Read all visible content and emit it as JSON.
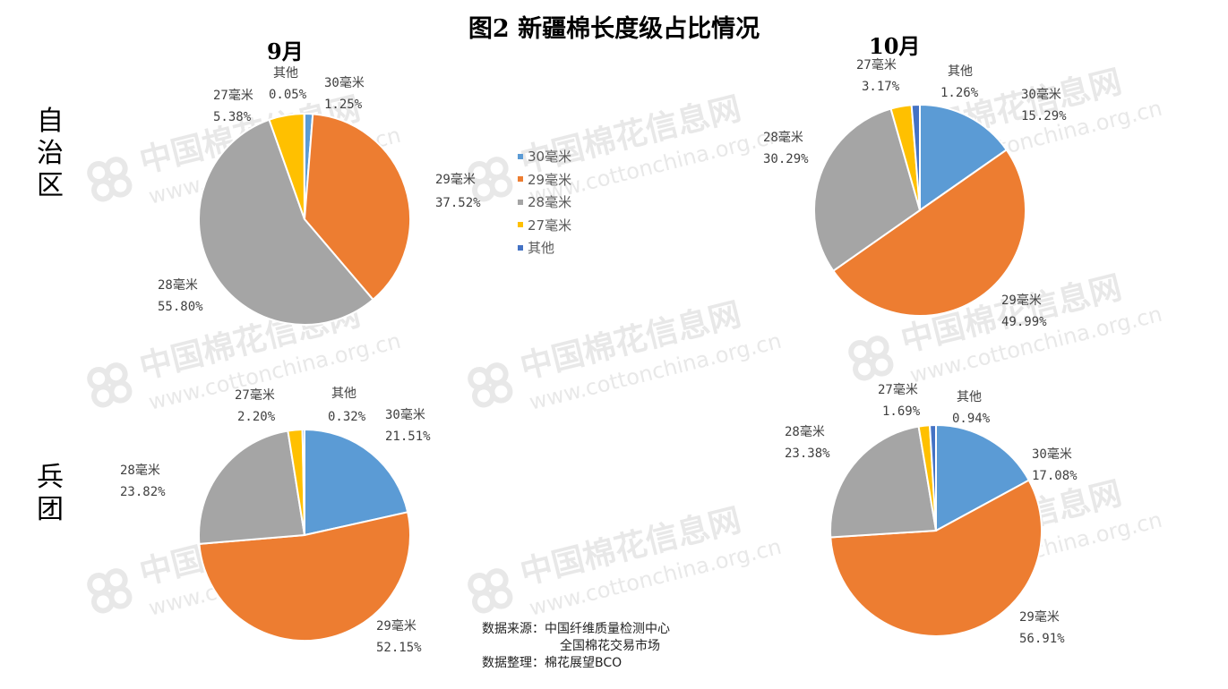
{
  "title": "图2  新疆棉长度级占比情况",
  "columns": [
    "9月",
    "10月"
  ],
  "rows": [
    "自治区",
    "兵团"
  ],
  "colors": {
    "30mm": "#5B9BD5",
    "29mm": "#ED7D31",
    "28mm": "#A5A5A5",
    "27mm": "#FFC000",
    "other": "#4472C4"
  },
  "legend": [
    {
      "label": "30毫米",
      "color": "#5B9BD5"
    },
    {
      "label": "29毫米",
      "color": "#ED7D31"
    },
    {
      "label": "28毫米",
      "color": "#A5A5A5"
    },
    {
      "label": "27毫米",
      "color": "#FFC000"
    },
    {
      "label": "其他",
      "color": "#4472C4"
    }
  ],
  "chart_data": [
    {
      "type": "pie",
      "title": "",
      "row": "自治区",
      "column": "9月",
      "slices": [
        {
          "label": "30毫米",
          "value": 1.25,
          "text": "1.25%"
        },
        {
          "label": "29毫米",
          "value": 37.52,
          "text": "37.52%"
        },
        {
          "label": "28毫米",
          "value": 55.8,
          "text": "55.80%"
        },
        {
          "label": "27毫米",
          "value": 5.38,
          "text": "5.38%"
        },
        {
          "label": "其他",
          "value": 0.05,
          "text": "0.05%"
        }
      ]
    },
    {
      "type": "pie",
      "title": "",
      "row": "自治区",
      "column": "10月",
      "slices": [
        {
          "label": "30毫米",
          "value": 15.29,
          "text": "15.29%"
        },
        {
          "label": "29毫米",
          "value": 49.99,
          "text": "49.99%"
        },
        {
          "label": "28毫米",
          "value": 30.29,
          "text": "30.29%"
        },
        {
          "label": "27毫米",
          "value": 3.17,
          "text": "3.17%"
        },
        {
          "label": "其他",
          "value": 1.26,
          "text": "1.26%"
        }
      ]
    },
    {
      "type": "pie",
      "title": "",
      "row": "兵团",
      "column": "9月",
      "slices": [
        {
          "label": "30毫米",
          "value": 21.51,
          "text": "21.51%"
        },
        {
          "label": "29毫米",
          "value": 52.15,
          "text": "52.15%"
        },
        {
          "label": "28毫米",
          "value": 23.82,
          "text": "23.82%"
        },
        {
          "label": "27毫米",
          "value": 2.2,
          "text": "2.20%"
        },
        {
          "label": "其他",
          "value": 0.32,
          "text": "0.32%"
        }
      ]
    },
    {
      "type": "pie",
      "title": "",
      "row": "兵团",
      "column": "10月",
      "slices": [
        {
          "label": "30毫米",
          "value": 17.08,
          "text": "17.08%"
        },
        {
          "label": "29毫米",
          "value": 56.91,
          "text": "56.91%"
        },
        {
          "label": "28毫米",
          "value": 23.38,
          "text": "23.38%"
        },
        {
          "label": "27毫米",
          "value": 1.69,
          "text": "1.69%"
        },
        {
          "label": "其他",
          "value": 0.94,
          "text": "0.94%"
        }
      ]
    }
  ],
  "source": {
    "line1_label": "数据来源：",
    "line1_value": "中国纤维质量检测中心",
    "line2_value": "全国棉花交易市场",
    "line3_label": "数据整理：",
    "line3_value": "棉花展望BCO"
  },
  "watermark": {
    "text": "中国棉花信息网",
    "url": "www.cottonchina.org.cn"
  }
}
